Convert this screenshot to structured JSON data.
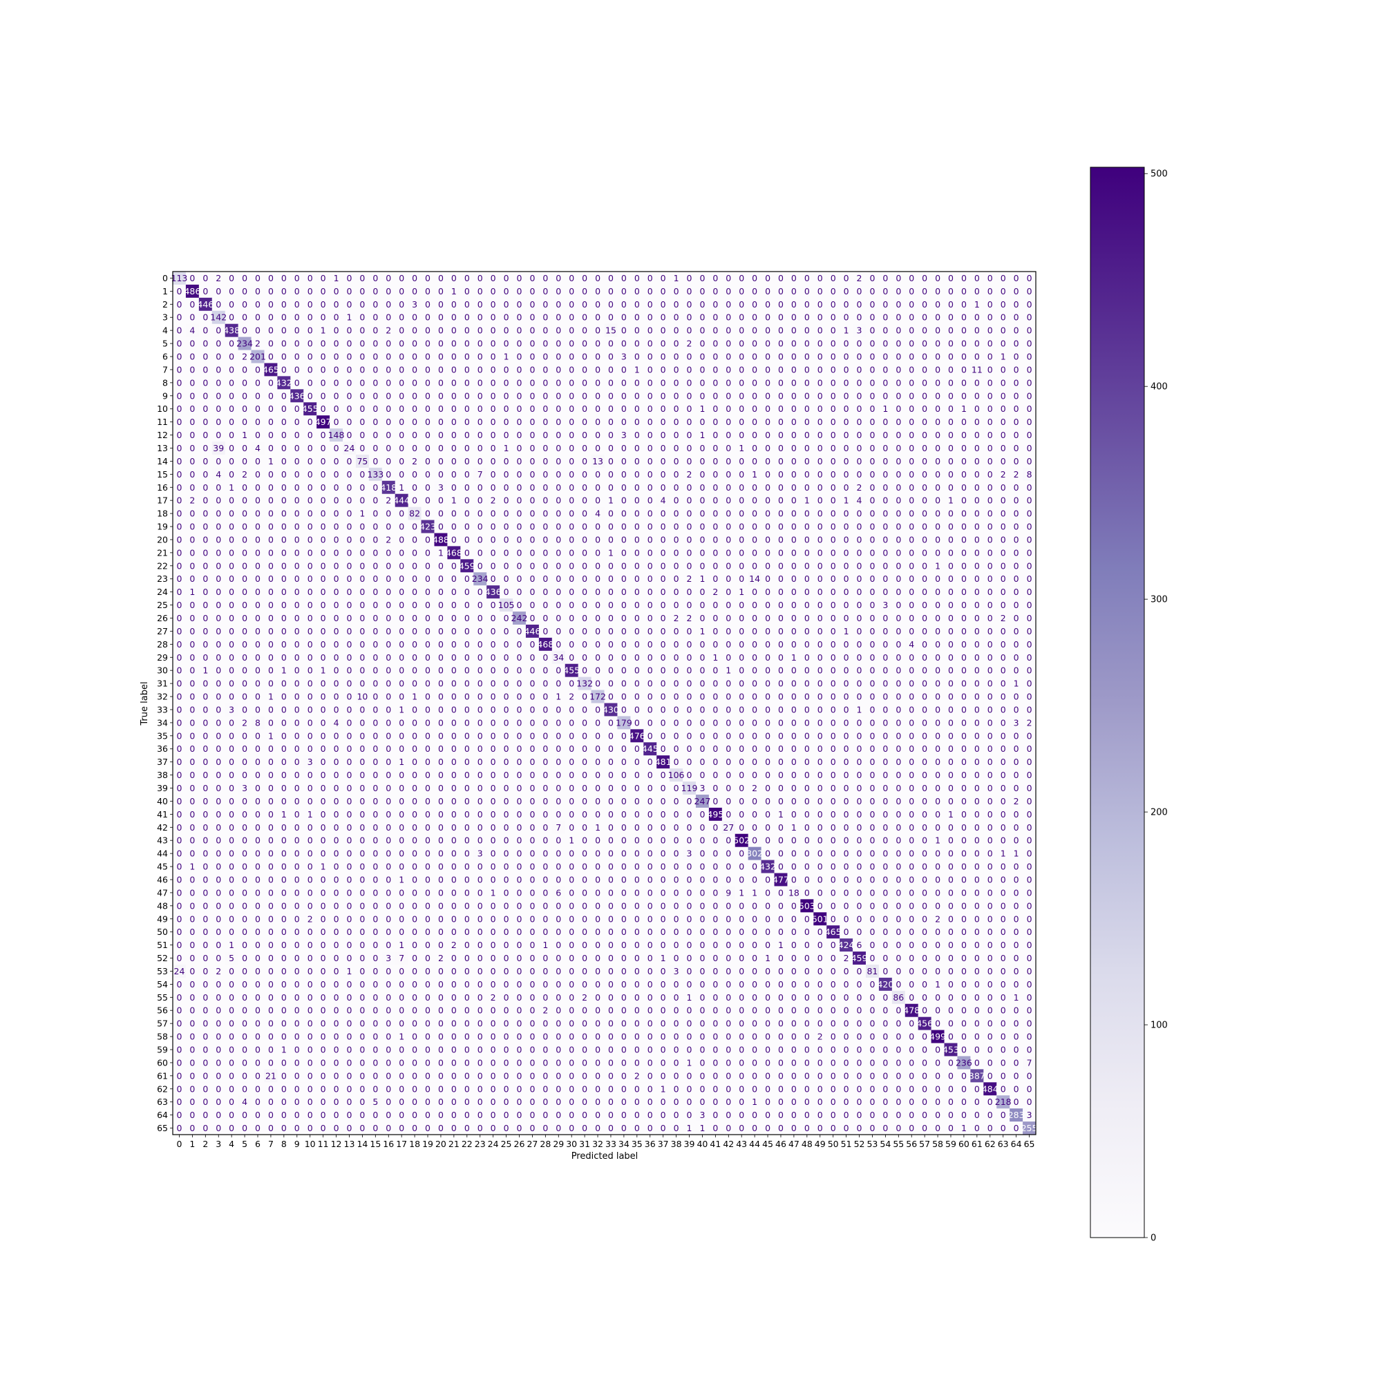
{
  "chart_data": {
    "type": "heatmap",
    "title": "",
    "xlabel": "Predicted label",
    "ylabel": "True label",
    "n_classes": 66,
    "class_labels": [
      "0",
      "1",
      "2",
      "3",
      "4",
      "5",
      "6",
      "7",
      "8",
      "9",
      "10",
      "11",
      "12",
      "13",
      "14",
      "15",
      "16",
      "17",
      "18",
      "19",
      "20",
      "21",
      "22",
      "23",
      "24",
      "25",
      "26",
      "27",
      "28",
      "29",
      "30",
      "31",
      "32",
      "33",
      "34",
      "35",
      "36",
      "37",
      "38",
      "39",
      "40",
      "41",
      "42",
      "43",
      "44",
      "45",
      "46",
      "47",
      "48",
      "49",
      "50",
      "51",
      "52",
      "53",
      "54",
      "55",
      "56",
      "57",
      "58",
      "59",
      "60",
      "61",
      "62",
      "63",
      "64",
      "65"
    ],
    "colormap": "Purples",
    "colorbar": {
      "min": 0,
      "max": 503,
      "ticks": [
        0,
        100,
        200,
        300,
        400,
        500
      ],
      "tick_labels": [
        "0",
        "100",
        "200",
        "300",
        "400",
        "500"
      ]
    },
    "rows": [
      "113 0 0 2 0 0 0 0 0 0 0 0 1 0 0 0 0 0 0 0 0 0 0 0 0 0 0 0 0 0 0 0 0 0 0 0 0 0 1 0 0 0 0 0 0 0 0 0 0 0 0 0 2 0 0 0 0 0 0 0 0 0 0 0 0 0",
      "0 486 0 0 0 0 0 0 0 0 0 0 0 0 0 0 0 0 0 0 0 1 0 0 0 0 0 0 0 0 0 0 0 0 0 0 0 0 0 0 0 0 0 0 0 0 0 0 0 0 0 0 0 0 0 0 0 0 0 0 0 0 0 0 0 0",
      "0 0 446 0 0 0 0 0 0 0 0 0 0 0 0 0 0 0 3 0 0 0 0 0 0 0 0 0 0 0 0 0 0 0 0 0 0 0 0 0 0 0 0 0 0 0 0 0 0 0 0 0 0 0 0 0 0 0 0 0 0 1 0 0 0 0",
      "0 0 0 142 0 0 0 0 0 0 0 0 0 1 0 0 0 0 0 0 0 0 0 0 0 0 0 0 0 0 0 0 0 0 0 0 0 0 0 0 0 0 0 0 0 0 0 0 0 0 0 0 0 0 0 0 0 0 0 0 0 0 0 0 0 0",
      "0 4 0 0 438 0 0 0 0 0 0 1 0 0 0 0 2 0 0 0 0 0 0 0 0 0 0 0 0 0 0 0 0 15 0 0 0 0 0 0 0 0 0 0 0 0 0 0 0 0 0 1 3 0 0 0 0 0 0 0 0 0 0 0 0 0",
      "0 0 0 0 0 234 2 0 0 0 0 0 0 0 0 0 0 0 0 0 0 0 0 0 0 0 0 0 0 0 0 0 0 0 0 0 0 0 0 2 0 0 0 0 0 0 0 0 0 0 0 0 0 0 0 0 0 0 0 0 0 0 0 0 0 0",
      "0 0 0 0 0 2 201 0 0 0 0 0 0 0 0 0 0 0 0 0 0 0 0 0 0 1 0 0 0 0 0 0 0 0 3 0 0 0 0 0 0 0 0 0 0 0 0 0 0 0 0 0 0 0 0 0 0 0 0 0 0 0 0 1 0 0",
      "0 0 0 0 0 0 0 465 0 0 0 0 0 0 0 0 0 0 0 0 0 0 0 0 0 0 0 0 0 0 0 0 0 0 0 1 0 0 0 0 0 0 0 0 0 0 0 0 0 0 0 0 0 0 0 0 0 0 0 0 0 11 0 0 0 0",
      "0 0 0 0 0 0 0 0 432 0 0 0 0 0 0 0 0 0 0 0 0 0 0 0 0 0 0 0 0 0 0 0 0 0 0 0 0 0 0 0 0 0 0 0 0 0 0 0 0 0 0 0 0 0 0 0 0 0 0 0 0 0 0 0 0 0",
      "0 0 0 0 0 0 0 0 0 436 0 0 0 0 0 0 0 0 0 0 0 0 0 0 0 0 0 0 0 0 0 0 0 0 0 0 0 0 0 0 0 0 0 0 0 0 0 0 0 0 0 0 0 0 0 0 0 0 0 0 0 0 0 0 0 0",
      "0 0 0 0 0 0 0 0 0 0 455 0 0 0 0 0 0 0 0 0 0 0 0 0 0 0 0 0 0 0 0 0 0 0 0 0 0 0 0 0 1 0 0 0 0 0 0 0 0 0 0 0 0 0 1 0 0 0 0 0 1 0 0 0 0 0",
      "0 0 0 0 0 0 0 0 0 0 0 497 0 0 0 0 0 0 0 0 0 0 0 0 0 0 0 0 0 0 0 0 0 0 0 0 0 0 0 0 0 0 0 0 0 0 0 0 0 0 0 0 0 0 0 0 0 0 0 0 0 0 0 0 0 0",
      "0 0 0 0 0 1 0 0 0 0 0 0 148 0 0 0 0 0 0 0 0 0 0 0 0 0 0 0 0 0 0 0 0 0 3 0 0 0 0 0 1 0 0 0 0 0 0 0 0 0 0 0 0 0 0 0 0 0 0 0 0 0 0 0 0 0",
      "0 0 0 39 0 0 4 0 0 0 0 0 0 24 0 0 0 0 0 0 0 0 0 0 0 1 0 0 0 0 0 0 0 0 0 0 0 0 0 0 0 0 0 1 0 0 0 0 0 0 0 0 0 0 0 0 0 0 0 0 0 0 0 0 0 0",
      "0 0 0 0 0 0 0 1 0 0 0 0 0 0 75 0 0 0 2 0 0 0 0 0 0 0 0 0 0 0 0 0 13 0 0 0 0 0 0 0 0 0 0 0 0 0 0 0 0 0 0 0 0 0 0 0 0 0 0 0 0 0 0 0 0 0",
      "0 0 0 4 0 2 0 0 0 0 0 0 0 0 0 133 0 0 0 0 0 0 0 7 0 0 0 0 0 0 0 0 0 0 0 0 0 0 0 2 0 0 0 0 1 0 0 0 0 0 0 0 0 0 0 0 0 0 0 0 0 0 0 2 2 8",
      "0 0 0 0 1 0 0 0 0 0 0 0 0 0 0 0 418 1 0 0 3 0 0 0 0 0 0 0 0 0 0 0 0 0 0 0 0 0 0 0 0 0 0 0 0 0 0 0 0 0 0 0 2 0 0 0 0 0 0 0 0 0 0 0 0 0",
      "0 2 0 0 0 0 0 0 0 0 0 0 0 0 0 0 2 444 0 0 0 1 0 0 2 0 0 0 0 0 0 0 0 1 0 0 0 4 0 0 0 0 0 0 0 0 0 0 1 0 0 1 4 0 0 0 0 0 0 1 0 0 0 0 0 0",
      "0 0 0 0 0 0 0 0 0 0 0 0 0 0 1 0 0 0 82 0 0 0 0 0 0 0 0 0 0 0 0 0 4 0 0 0 0 0 0 0 0 0 0 0 0 0 0 0 0 0 0 0 0 0 0 0 0 0 0 0 0 0 0 0 0 0",
      "0 0 0 0 0 0 0 0 0 0 0 0 0 0 0 0 0 0 0 423 0 0 0 0 0 0 0 0 0 0 0 0 0 0 0 0 0 0 0 0 0 0 0 0 0 0 0 0 0 0 0 0 0 0 0 0 0 0 0 0 0 0 0 0 0 0",
      "0 0 0 0 0 0 0 0 0 0 0 0 0 0 0 0 2 0 0 0 488 0 0 0 0 0 0 0 0 0 0 0 0 0 0 0 0 0 0 0 0 0 0 0 0 0 0 0 0 0 0 0 0 0 0 0 0 0 0 0 0 0 0 0 0 0",
      "0 0 0 0 0 0 0 0 0 0 0 0 0 0 0 0 0 0 0 0 1 468 0 0 0 0 0 0 0 0 0 0 0 1 0 0 0 0 0 0 0 0 0 0 0 0 0 0 0 0 0 0 0 0 0 0 0 0 0 0 0 0 0 0 0 0",
      "0 0 0 0 0 0 0 0 0 0 0 0 0 0 0 0 0 0 0 0 0 0 459 0 0 0 0 0 0 0 0 0 0 0 0 0 0 0 0 0 0 0 0 0 0 0 0 0 0 0 0 0 0 0 0 0 0 0 1 0 0 0 0 0 0 0",
      "0 0 0 0 0 0 0 0 0 0 0 0 0 0 0 0 0 0 0 0 0 0 0 234 0 0 0 0 0 0 0 0 0 0 0 0 0 0 0 2 1 0 0 0 14 0 0 0 0 0 0 0 0 0 0 0 0 0 0 0 0 0 0 0 0 0",
      "0 1 0 0 0 0 0 0 0 0 0 0 0 0 0 0 0 0 0 0 0 0 0 0 436 0 0 0 0 0 0 0 0 0 0 0 0 0 0 0 0 2 0 1 0 0 0 0 0 0 0 0 0 0 0 0 0 0 0 0 0 0 0 0 0 0",
      "0 0 0 0 0 0 0 0 0 0 0 0 0 0 0 0 0 0 0 0 0 0 0 0 0 105 0 0 0 0 0 0 0 0 0 0 0 0 0 0 0 0 0 0 0 0 0 0 0 0 0 0 0 0 3 0 0 0 0 0 0 0 0 0 0 0",
      "0 0 0 0 0 0 0 0 0 0 0 0 0 0 0 0 0 0 0 0 0 0 0 0 0 0 242 0 0 0 0 0 0 0 0 0 0 0 2 2 0 0 0 0 0 0 0 0 0 0 0 0 0 0 0 0 0 0 0 0 0 0 0 2 0 0",
      "0 0 0 0 0 0 0 0 0 0 0 0 0 0 0 0 0 0 0 0 0 0 0 0 0 0 0 446 0 0 0 0 0 0 0 0 0 0 0 0 1 0 0 0 0 0 0 0 0 0 0 1 0 0 0 0 0 0 0 0 0 0 0 0 0 0",
      "0 0 0 0 0 0 0 0 0 0 0 0 0 0 0 0 0 0 0 0 0 0 0 0 0 0 0 0 468 0 0 0 0 0 0 0 0 0 0 0 0 0 0 0 0 0 0 0 0 0 0 0 0 0 0 0 4 0 0 0 0 0 0 0 0 0",
      "0 0 0 0 0 0 0 0 0 0 0 0 0 0 0 0 0 0 0 0 0 0 0 0 0 0 0 0 0 34 0 0 0 0 0 0 0 0 0 0 0 1 0 0 0 0 0 1 0 0 0 0 0 0 0 0 0 0 0 0 0 0 0 0 0 0",
      "0 0 1 0 0 0 0 0 1 0 0 1 0 0 0 0 0 0 0 0 0 0 0 0 0 0 0 0 0 0 455 0 0 0 0 0 0 0 0 0 0 0 1 0 0 0 0 0 0 0 0 0 0 0 0 0 0 0 0 0 0 0 0 0 0 0",
      "0 0 0 0 0 0 0 0 0 0 0 0 0 0 0 0 0 0 0 0 0 0 0 0 0 0 0 0 0 0 0 132 0 0 0 0 0 0 0 0 0 0 0 0 0 0 0 0 0 0 0 0 0 0 0 0 0 0 0 0 0 0 0 0 1 0",
      "0 0 0 0 0 0 0 1 0 0 0 0 0 0 10 0 0 0 1 0 0 0 0 0 0 0 0 0 0 1 2 0 172 0 0 0 0 0 0 0 0 0 0 0 0 0 0 0 0 0 0 0 0 0 0 0 0 0 0 0 0 0 0 0 0 0",
      "0 0 0 0 3 0 0 0 0 0 0 0 0 0 0 0 0 1 0 0 0 0 0 0 0 0 0 0 0 0 0 0 0 430 0 0 0 0 0 0 0 0 0 0 0 0 0 0 0 0 0 0 1 0 0 0 0 0 0 0 0 0 0 0 0 0",
      "0 0 0 0 0 2 8 0 0 0 0 0 4 0 0 0 0 0 0 0 0 0 0 0 0 0 0 0 0 0 0 0 0 0 179 0 0 0 0 0 0 0 0 0 0 0 0 0 0 0 0 0 0 0 0 0 0 0 0 0 0 0 0 0 3 2",
      "0 0 0 0 0 0 0 1 0 0 0 0 0 0 0 0 0 0 0 0 0 0 0 0 0 0 0 0 0 0 0 0 0 0 0 476 0 0 0 0 0 0 0 0 0 0 0 0 0 0 0 0 0 0 0 0 0 0 0 0 0 0 0 0 0 0",
      "0 0 0 0 0 0 0 0 0 0 0 0 0 0 0 0 0 0 0 0 0 0 0 0 0 0 0 0 0 0 0 0 0 0 0 0 445 0 0 0 0 0 0 0 0 0 0 0 0 0 0 0 0 0 0 0 0 0 0 0 0 0 0 0 0 0",
      "0 0 0 0 0 0 0 0 0 0 3 0 0 0 0 0 0 1 0 0 0 0 0 0 0 0 0 0 0 0 0 0 0 0 0 0 0 481 0 0 0 0 0 0 0 0 0 0 0 0 0 0 0 0 0 0 0 0 0 0 0 0 0 0 0 0",
      "0 0 0 0 0 0 0 0 0 0 0 0 0 0 0 0 0 0 0 0 0 0 0 0 0 0 0 0 0 0 0 0 0 0 0 0 0 0 106 0 0 0 0 0 0 0 0 0 0 0 0 0 0 0 0 0 0 0 0 0 0 0 0 0 0 0",
      "0 0 0 0 0 3 0 0 0 0 0 0 0 0 0 0 0 0 0 0 0 0 0 0 0 0 0 0 0 0 0 0 0 0 0 0 0 0 0 119 3 0 0 0 2 0 0 0 0 0 0 0 0 0 0 0 0 0 0 0 0 0 0 0 0 0",
      "0 0 0 0 0 0 0 0 0 0 0 0 0 0 0 0 0 0 0 0 0 0 0 0 0 0 0 0 0 0 0 0 0 0 0 0 0 0 0 0 247 0 0 0 0 0 0 0 0 0 0 0 0 0 0 0 0 0 0 0 0 0 0 0 2 0",
      "0 0 0 0 0 0 0 0 1 0 1 0 0 0 0 0 0 0 0 0 0 0 0 0 0 0 0 0 0 0 0 0 0 0 0 0 0 0 0 0 0 495 0 0 0 0 1 0 0 0 0 0 0 0 0 0 0 0 0 1 0 0 0 0 0 0",
      "0 0 0 0 0 0 0 0 0 0 0 0 0 0 0 0 0 0 0 0 0 0 0 0 0 0 0 0 0 7 0 0 1 0 0 0 0 0 0 0 0 0 27 0 0 0 0 1 0 0 0 0 0 0 0 0 0 0 0 0 0 0 0 0 0 0",
      "0 0 0 0 0 0 0 0 0 0 0 0 0 0 0 0 0 0 0 0 0 0 0 0 0 0 0 0 0 0 1 0 0 0 0 0 0 0 0 0 0 0 0 502 0 0 0 0 0 0 0 0 0 0 0 0 0 0 1 0 0 0 0 0 0 0",
      "0 0 0 0 0 0 0 0 0 0 0 0 0 0 0 0 0 0 0 0 0 0 0 3 0 0 0 0 0 0 0 0 0 0 0 0 0 0 0 3 0 0 0 0 302 0 0 0 0 0 0 0 0 0 0 0 0 0 0 0 0 0 0 1 1 0",
      "0 1 0 0 0 0 0 0 0 0 0 1 0 0 0 0 0 0 0 0 0 0 0 0 0 0 0 0 0 0 0 0 0 0 0 0 0 0 0 0 0 0 0 0 0 432 0 0 0 0 0 0 0 0 0 0 0 0 0 0 0 0 0 0 0 0",
      "0 0 0 0 0 0 0 0 0 0 0 0 0 0 0 0 0 1 0 0 0 0 0 0 0 0 0 0 0 0 0 0 0 0 0 0 0 0 0 0 0 0 0 0 0 0 477 0 0 0 0 0 0 0 0 0 0 0 0 0 0 0 0 0 0 0",
      "0 0 0 0 0 0 0 0 0 0 0 0 0 0 0 0 0 0 0 0 0 0 0 0 1 0 0 0 0 6 0 0 0 0 0 0 0 0 0 0 0 0 9 1 1 0 0 18 0 0 0 0 0 0 0 0 0 0 0 0 0 0 0 0 0 0",
      "0 0 0 0 0 0 0 0 0 0 0 0 0 0 0 0 0 0 0 0 0 0 0 0 0 0 0 0 0 0 0 0 0 0 0 0 0 0 0 0 0 0 0 0 0 0 0 0 503 0 0 0 0 0 0 0 0 0 0 0 0 0 0 0 0 0",
      "0 0 0 0 0 0 0 0 0 0 2 0 0 0 0 0 0 0 0 0 0 0 0 0 0 0 0 0 0 0 0 0 0 0 0 0 0 0 0 0 0 0 0 0 0 0 0 0 0 501 0 0 0 0 0 0 0 0 2 0 0 0 0 0 0 0",
      "0 0 0 0 0 0 0 0 0 0 0 0 0 0 0 0 0 0 0 0 0 0 0 0 0 0 0 0 0 0 0 0 0 0 0 0 0 0 0 0 0 0 0 0 0 0 0 0 0 0 465 0 0 0 0 0 0 0 0 0 0 0 0 0 0 0",
      "0 0 0 0 1 0 0 0 0 0 0 0 0 0 0 0 0 1 0 0 0 2 0 0 0 0 0 0 1 0 0 0 0 0 0 0 0 0 0 0 0 0 0 0 0 0 1 0 0 0 0 424 6 0 0 0 0 0 0 0 0 0 0 0 0 0",
      "0 0 0 0 5 0 0 0 0 0 0 0 0 0 0 0 3 7 0 0 2 0 0 0 0 0 0 0 0 0 0 0 0 0 0 0 0 1 0 0 0 0 0 0 0 1 0 0 0 0 0 2 459 0 0 0 0 0 0 0 0 0 0 0 0 0",
      "24 0 0 2 0 0 0 0 0 0 0 0 0 1 0 0 0 0 0 0 0 0 0 0 0 0 0 0 0 0 0 0 0 0 0 0 0 0 3 0 0 0 0 0 0 0 0 0 0 0 0 0 0 81 0 0 0 0 0 0 0 0 0 0 0 0",
      "0 0 0 0 0 0 0 0 0 0 0 0 0 0 0 0 0 0 0 0 0 0 0 0 0 0 0 0 0 0 0 0 0 0 0 0 0 0 0 0 0 0 0 0 0 0 0 0 0 0 0 0 0 0 420 0 0 0 1 0 0 0 0 0 0 0",
      "0 0 0 0 0 0 0 0 0 0 0 0 0 0 0 0 0 0 0 0 0 0 0 0 2 0 0 0 0 0 0 2 0 0 0 0 0 0 0 1 0 0 0 0 0 0 0 0 0 0 0 0 0 0 0 86 0 0 0 0 0 0 0 0 1 0",
      "0 0 0 0 0 0 0 0 0 0 0 0 0 0 0 0 0 0 0 0 0 0 0 0 0 0 0 0 2 0 0 0 0 0 0 0 0 0 0 0 0 0 0 0 0 0 0 0 0 0 0 0 0 0 0 0 478 0 0 0 0 0 0 0 0 0",
      "0 0 0 0 0 0 0 0 0 0 0 0 0 0 0 0 0 0 0 0 0 0 0 0 0 0 0 0 0 0 0 0 0 0 0 0 0 0 0 0 0 0 0 0 0 0 0 0 0 0 0 0 0 0 0 0 0 456 0 0 0 0 0 0 0 0",
      "0 0 0 0 0 0 0 0 0 0 0 0 0 0 0 0 0 1 0 0 0 0 0 0 0 0 0 0 0 0 0 0 0 0 0 0 0 0 0 0 0 0 0 0 0 0 0 0 0 2 0 0 0 0 0 0 0 0 499 0 0 0 0 0 0 0",
      "0 0 0 0 0 0 0 0 1 0 0 0 0 0 0 0 0 0 0 0 0 0 0 0 0 0 0 0 0 0 0 0 0 0 0 0 0 0 0 0 0 0 0 0 0 0 0 0 0 0 0 0 0 0 0 0 0 0 0 453 0 0 0 0 0 0",
      "0 0 0 0 0 0 0 0 0 0 0 0 0 0 0 0 0 0 0 0 0 0 0 0 0 0 0 0 0 0 0 0 0 0 0 0 0 0 0 1 0 0 0 0 0 0 0 0 0 0 0 0 0 0 0 0 0 0 0 0 236 0 0 0 0 7",
      "0 0 0 0 0 0 0 21 0 0 0 0 0 0 0 0 0 0 0 0 0 0 0 0 0 0 0 0 0 0 0 0 0 0 0 2 0 0 0 0 0 0 0 0 0 0 0 0 0 0 0 0 0 0 0 0 0 0 0 0 0 387 0 0 0 0",
      "0 0 0 0 0 0 0 0 0 0 0 0 0 0 0 0 0 0 0 0 0 0 0 0 0 0 0 0 0 0 0 0 0 0 0 0 0 1 0 0 0 0 0 0 0 0 0 0 0 0 0 0 0 0 0 0 0 0 0 0 0 0 484 0 0 0",
      "0 0 0 0 0 4 0 0 0 0 0 0 0 0 0 5 0 0 0 0 0 0 0 0 0 0 0 0 0 0 0 0 0 0 0 0 0 0 0 0 0 0 0 0 1 0 0 0 0 0 0 0 0 0 0 0 0 0 0 0 0 0 0 218 0 0",
      "0 0 0 0 0 0 0 0 0 0 0 0 0 0 0 0 0 0 0 0 0 0 0 0 0 0 0 0 0 0 0 0 0 0 0 0 0 0 0 0 3 0 0 0 0 0 0 0 0 0 0 0 0 0 0 0 0 0 0 0 0 0 0 0 283 3",
      "0 0 0 0 0 0 0 0 0 0 0 0 0 0 0 0 0 0 0 0 0 0 0 0 0 0 0 0 0 0 0 0 0 0 0 0 0 0 0 1 1 0 0 0 0 0 0 0 0 0 0 0 0 0 0 0 0 0 0 0 1 0 0 0 0 255"
    ]
  }
}
